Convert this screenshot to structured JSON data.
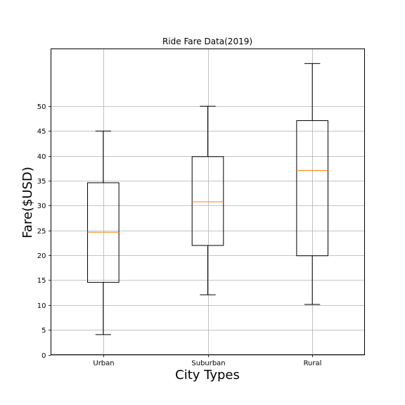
{
  "chart_data": {
    "type": "box",
    "title": "Ride Fare Data(2019)",
    "xlabel": "City Types",
    "ylabel": "Fare($USD)",
    "ylim": [
      0,
      61.5
    ],
    "yticks": [
      0,
      5,
      10,
      15,
      20,
      25,
      30,
      35,
      40,
      45,
      50
    ],
    "grid": true,
    "categories": [
      "Urban",
      "Suburban",
      "Rural"
    ],
    "boxes": [
      {
        "category": "Urban",
        "whisker_low": 4.05,
        "q1": 14.55,
        "median": 24.64,
        "q3": 34.58,
        "whisker_high": 44.97
      },
      {
        "category": "Suburban",
        "whisker_low": 12.05,
        "q1": 21.97,
        "median": 30.75,
        "q3": 39.83,
        "whisker_high": 49.96
      },
      {
        "category": "Rural",
        "whisker_low": 10.11,
        "q1": 19.9,
        "median": 37.05,
        "q3": 47.07,
        "whisker_high": 58.55
      }
    ],
    "colors": {
      "box": "#000000",
      "median": "#ff7f0e",
      "grid": "#b0b0b0"
    }
  }
}
